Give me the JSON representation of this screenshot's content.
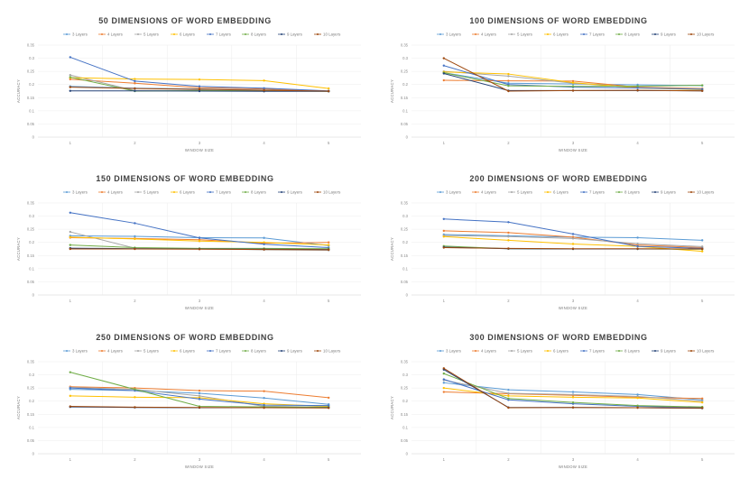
{
  "chart_data": [
    {
      "type": "line",
      "title": "50 DIMENSIONS OF WORD EMBEDDING",
      "xlabel": "WINDOW SIZE",
      "ylabel": "ACCURACY",
      "ylim": [
        0,
        0.35
      ],
      "yticks": [
        "0",
        "0.05",
        "0.1",
        "0.15",
        "0.2",
        "0.25",
        "0.3",
        "0.35"
      ],
      "x": [
        1,
        2,
        3,
        4,
        5
      ],
      "legend_position": "top",
      "series": [
        {
          "name": "3 Layers",
          "color": "#5b9bd5",
          "values": [
            0.193,
            0.186,
            0.183,
            0.179,
            0.175
          ]
        },
        {
          "name": "4 Layers",
          "color": "#ed7d31",
          "values": [
            0.22,
            0.205,
            0.188,
            0.183,
            0.174
          ]
        },
        {
          "name": "5 Layers",
          "color": "#a5a5a5",
          "values": [
            0.236,
            0.177,
            0.178,
            0.176,
            0.175
          ]
        },
        {
          "name": "6 Layers",
          "color": "#ffc000",
          "values": [
            0.226,
            0.221,
            0.219,
            0.215,
            0.185
          ]
        },
        {
          "name": "7 Layers",
          "color": "#4472c4",
          "values": [
            0.304,
            0.213,
            0.193,
            0.186,
            0.176
          ]
        },
        {
          "name": "8 Layers",
          "color": "#70ad47",
          "values": [
            0.228,
            0.175,
            0.177,
            0.176,
            0.174
          ]
        },
        {
          "name": "9 Layers",
          "color": "#264478",
          "values": [
            0.176,
            0.176,
            0.175,
            0.174,
            0.174
          ]
        },
        {
          "name": "10 Layers",
          "color": "#9e480e",
          "values": [
            0.19,
            0.185,
            0.182,
            0.178,
            0.175
          ]
        }
      ]
    },
    {
      "type": "line",
      "title": "100 DIMENSIONS OF WORD EMBEDDING",
      "xlabel": "WINDOW SIZE",
      "ylabel": "ACCURACY",
      "ylim": [
        0,
        0.35
      ],
      "yticks": [
        "0",
        "0.05",
        "0.1",
        "0.15",
        "0.2",
        "0.25",
        "0.3",
        "0.35"
      ],
      "x": [
        1,
        2,
        3,
        4,
        5
      ],
      "legend_position": "top",
      "series": [
        {
          "name": "3 Layers",
          "color": "#5b9bd5",
          "values": [
            0.245,
            0.205,
            0.202,
            0.199,
            0.196
          ]
        },
        {
          "name": "4 Layers",
          "color": "#ed7d31",
          "values": [
            0.216,
            0.214,
            0.213,
            0.19,
            0.185
          ]
        },
        {
          "name": "5 Layers",
          "color": "#a5a5a5",
          "values": [
            0.25,
            0.232,
            0.205,
            0.188,
            0.183
          ]
        },
        {
          "name": "6 Layers",
          "color": "#ffc000",
          "values": [
            0.248,
            0.24,
            0.207,
            0.187,
            0.18
          ]
        },
        {
          "name": "7 Layers",
          "color": "#4472c4",
          "values": [
            0.272,
            0.2,
            0.19,
            0.187,
            0.182
          ]
        },
        {
          "name": "8 Layers",
          "color": "#70ad47",
          "values": [
            0.245,
            0.195,
            0.193,
            0.194,
            0.197
          ]
        },
        {
          "name": "9 Layers",
          "color": "#264478",
          "values": [
            0.242,
            0.177,
            0.177,
            0.177,
            0.176
          ]
        },
        {
          "name": "10 Layers",
          "color": "#9e480e",
          "values": [
            0.3,
            0.175,
            0.177,
            0.178,
            0.176
          ]
        }
      ]
    },
    {
      "type": "line",
      "title": "150 DIMENSIONS OF WORD EMBEDDING",
      "xlabel": "WINDOW SIZE",
      "ylabel": "ACCURACY",
      "ylim": [
        0,
        0.35
      ],
      "yticks": [
        "0",
        "0.05",
        "0.1",
        "0.15",
        "0.2",
        "0.25",
        "0.3",
        "0.35"
      ],
      "x": [
        1,
        2,
        3,
        4,
        5
      ],
      "legend_position": "top",
      "series": [
        {
          "name": "3 Layers",
          "color": "#5b9bd5",
          "values": [
            0.225,
            0.223,
            0.218,
            0.217,
            0.188
          ]
        },
        {
          "name": "4 Layers",
          "color": "#ed7d31",
          "values": [
            0.218,
            0.215,
            0.21,
            0.197,
            0.2
          ]
        },
        {
          "name": "5 Layers",
          "color": "#a5a5a5",
          "values": [
            0.24,
            0.178,
            0.175,
            0.172,
            0.17
          ]
        },
        {
          "name": "6 Layers",
          "color": "#ffc000",
          "values": [
            0.22,
            0.213,
            0.205,
            0.2,
            0.19
          ]
        },
        {
          "name": "7 Layers",
          "color": "#4472c4",
          "values": [
            0.313,
            0.273,
            0.217,
            0.193,
            0.18
          ]
        },
        {
          "name": "8 Layers",
          "color": "#70ad47",
          "values": [
            0.19,
            0.18,
            0.177,
            0.177,
            0.176
          ]
        },
        {
          "name": "9 Layers",
          "color": "#264478",
          "values": [
            0.178,
            0.176,
            0.175,
            0.174,
            0.173
          ]
        },
        {
          "name": "10 Layers",
          "color": "#9e480e",
          "values": [
            0.175,
            0.175,
            0.174,
            0.173,
            0.172
          ]
        }
      ]
    },
    {
      "type": "line",
      "title": "200 DIMENSIONS OF WORD EMBEDDING",
      "xlabel": "WINDOW SIZE",
      "ylabel": "ACCURACY",
      "ylim": [
        0,
        0.35
      ],
      "yticks": [
        "0",
        "0.05",
        "0.1",
        "0.15",
        "0.2",
        "0.25",
        "0.3",
        "0.35"
      ],
      "x": [
        1,
        2,
        3,
        4,
        5
      ],
      "legend_position": "top",
      "series": [
        {
          "name": "3 Layers",
          "color": "#5b9bd5",
          "values": [
            0.23,
            0.225,
            0.22,
            0.218,
            0.208
          ]
        },
        {
          "name": "4 Layers",
          "color": "#ed7d31",
          "values": [
            0.244,
            0.237,
            0.22,
            0.19,
            0.18
          ]
        },
        {
          "name": "5 Layers",
          "color": "#a5a5a5",
          "values": [
            0.226,
            0.222,
            0.215,
            0.195,
            0.184
          ]
        },
        {
          "name": "6 Layers",
          "color": "#ffc000",
          "values": [
            0.222,
            0.208,
            0.194,
            0.185,
            0.166
          ]
        },
        {
          "name": "7 Layers",
          "color": "#4472c4",
          "values": [
            0.289,
            0.277,
            0.232,
            0.185,
            0.177
          ]
        },
        {
          "name": "8 Layers",
          "color": "#70ad47",
          "values": [
            0.186,
            0.176,
            0.175,
            0.175,
            0.174
          ]
        },
        {
          "name": "9 Layers",
          "color": "#264478",
          "values": [
            0.182,
            0.176,
            0.175,
            0.175,
            0.175
          ]
        },
        {
          "name": "10 Layers",
          "color": "#9e480e",
          "values": [
            0.18,
            0.177,
            0.176,
            0.176,
            0.175
          ]
        }
      ]
    },
    {
      "type": "line",
      "title": "250 DIMENSIONS OF WORD EMBEDDING",
      "xlabel": "WINDOW SIZE",
      "ylabel": "ACCURACY",
      "ylim": [
        0,
        0.35
      ],
      "yticks": [
        "0",
        "0.05",
        "0.1",
        "0.15",
        "0.2",
        "0.25",
        "0.3",
        "0.35"
      ],
      "x": [
        1,
        2,
        3,
        4,
        5
      ],
      "legend_position": "top",
      "series": [
        {
          "name": "3 Layers",
          "color": "#5b9bd5",
          "values": [
            0.245,
            0.24,
            0.23,
            0.212,
            0.188
          ]
        },
        {
          "name": "4 Layers",
          "color": "#ed7d31",
          "values": [
            0.255,
            0.25,
            0.24,
            0.238,
            0.213
          ]
        },
        {
          "name": "5 Layers",
          "color": "#a5a5a5",
          "values": [
            0.252,
            0.245,
            0.22,
            0.18,
            0.177
          ]
        },
        {
          "name": "6 Layers",
          "color": "#ffc000",
          "values": [
            0.22,
            0.215,
            0.213,
            0.19,
            0.18
          ]
        },
        {
          "name": "7 Layers",
          "color": "#4472c4",
          "values": [
            0.25,
            0.24,
            0.208,
            0.185,
            0.183
          ]
        },
        {
          "name": "8 Layers",
          "color": "#70ad47",
          "values": [
            0.31,
            0.245,
            0.18,
            0.178,
            0.177
          ]
        },
        {
          "name": "9 Layers",
          "color": "#264478",
          "values": [
            0.178,
            0.176,
            0.175,
            0.175,
            0.175
          ]
        },
        {
          "name": "10 Layers",
          "color": "#9e480e",
          "values": [
            0.18,
            0.177,
            0.176,
            0.175,
            0.174
          ]
        }
      ]
    },
    {
      "type": "line",
      "title": "300 DIMENSIONS OF WORD EMBEDDING",
      "xlabel": "WINDOW SIZE",
      "ylabel": "ACCURACY",
      "ylim": [
        0,
        0.35
      ],
      "yticks": [
        "0",
        "0.05",
        "0.1",
        "0.15",
        "0.2",
        "0.25",
        "0.3",
        "0.35"
      ],
      "x": [
        1,
        2,
        3,
        4,
        5
      ],
      "legend_position": "top",
      "series": [
        {
          "name": "3 Layers",
          "color": "#5b9bd5",
          "values": [
            0.27,
            0.243,
            0.235,
            0.225,
            0.205
          ]
        },
        {
          "name": "4 Layers",
          "color": "#ed7d31",
          "values": [
            0.235,
            0.228,
            0.222,
            0.215,
            0.21
          ]
        },
        {
          "name": "5 Layers",
          "color": "#a5a5a5",
          "values": [
            0.28,
            0.23,
            0.225,
            0.218,
            0.2
          ]
        },
        {
          "name": "6 Layers",
          "color": "#ffc000",
          "values": [
            0.25,
            0.22,
            0.215,
            0.212,
            0.195
          ]
        },
        {
          "name": "7 Layers",
          "color": "#4472c4",
          "values": [
            0.283,
            0.205,
            0.19,
            0.18,
            0.176
          ]
        },
        {
          "name": "8 Layers",
          "color": "#70ad47",
          "values": [
            0.305,
            0.21,
            0.195,
            0.183,
            0.178
          ]
        },
        {
          "name": "9 Layers",
          "color": "#264478",
          "values": [
            0.32,
            0.176,
            0.176,
            0.175,
            0.173
          ]
        },
        {
          "name": "10 Layers",
          "color": "#9e480e",
          "values": [
            0.325,
            0.175,
            0.176,
            0.175,
            0.174
          ]
        }
      ]
    }
  ]
}
